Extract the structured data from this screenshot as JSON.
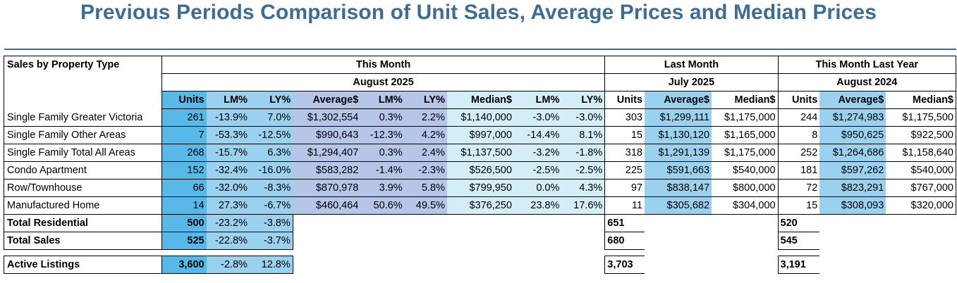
{
  "title": "Previous Periods Comparison of Unit Sales, Average Prices and Median Prices",
  "header": {
    "row_label": "Sales by Property Type",
    "this_month": "This Month",
    "this_month_period": "August 2025",
    "last_month": "Last Month",
    "last_month_period": "July 2025",
    "last_year": "This Month Last Year",
    "last_year_period": "August 2024",
    "columns": [
      "Units",
      "LM%",
      "LY%",
      "Average$",
      "LM%",
      "LY%",
      "Median$",
      "LM%",
      "LY%",
      "Units",
      "Average$",
      "Median$",
      "Units",
      "Average$",
      "Median$"
    ]
  },
  "rows": [
    {
      "label": "Single Family Greater Victoria",
      "values": [
        "261",
        "-13.9%",
        "7.0%",
        "$1,302,554",
        "0.3%",
        "2.2%",
        "$1,140,000",
        "-3.0%",
        "-3.0%",
        "303",
        "$1,299,111",
        "$1,175,000",
        "244",
        "$1,274,983",
        "$1,175,500"
      ]
    },
    {
      "label": "Single Family Other Areas",
      "values": [
        "7",
        "-53.3%",
        "-12.5%",
        "$990,643",
        "-12.3%",
        "4.2%",
        "$997,000",
        "-14.4%",
        "8.1%",
        "15",
        "$1,130,120",
        "$1,165,000",
        "8",
        "$950,625",
        "$922,500"
      ]
    },
    {
      "label": "Single Family Total All Areas",
      "values": [
        "268",
        "-15.7%",
        "6.3%",
        "$1,294,407",
        "0.3%",
        "2.4%",
        "$1,137,500",
        "-3.2%",
        "-1.8%",
        "318",
        "$1,291,139",
        "$1,175,000",
        "252",
        "$1,264,686",
        "$1,158,640"
      ]
    },
    {
      "label": "Condo Apartment",
      "values": [
        "152",
        "-32.4%",
        "-16.0%",
        "$583,282",
        "-1.4%",
        "-2.3%",
        "$526,500",
        "-2.5%",
        "-2.5%",
        "225",
        "$591,663",
        "$540,000",
        "181",
        "$597,262",
        "$540,000"
      ]
    },
    {
      "label": "Row/Townhouse",
      "values": [
        "66",
        "-32.0%",
        "-8.3%",
        "$870,978",
        "3.9%",
        "5.8%",
        "$799,950",
        "0.0%",
        "4.3%",
        "97",
        "$838,147",
        "$800,000",
        "72",
        "$823,291",
        "$767,000"
      ]
    },
    {
      "label": "Manufactured Home",
      "values": [
        "14",
        "27.3%",
        "-6.7%",
        "$460,464",
        "50.6%",
        "49.5%",
        "$376,250",
        "23.8%",
        "17.6%",
        "11",
        "$305,682",
        "$304,000",
        "15",
        "$308,093",
        "$320,000"
      ]
    }
  ],
  "totals": [
    {
      "label": "Total Residential",
      "units": "500",
      "lm": "-23.2%",
      "ly": "-3.8%",
      "last_month_units": "651",
      "last_year_units": "520"
    },
    {
      "label": "Total Sales",
      "units": "525",
      "lm": "-22.8%",
      "ly": "-3.7%",
      "last_month_units": "680",
      "last_year_units": "545"
    }
  ],
  "active": {
    "label": "Active Listings",
    "units": "3,600",
    "lm": "-2.8%",
    "ly": "12.8%",
    "last_month_units": "3,703",
    "last_year_units": "3,191"
  },
  "colors": {
    "title": "#3d6d93",
    "units": "#56b9e8",
    "pct": "#99d1ee",
    "average": "#b5c6e8",
    "median": "#d3eef7"
  }
}
